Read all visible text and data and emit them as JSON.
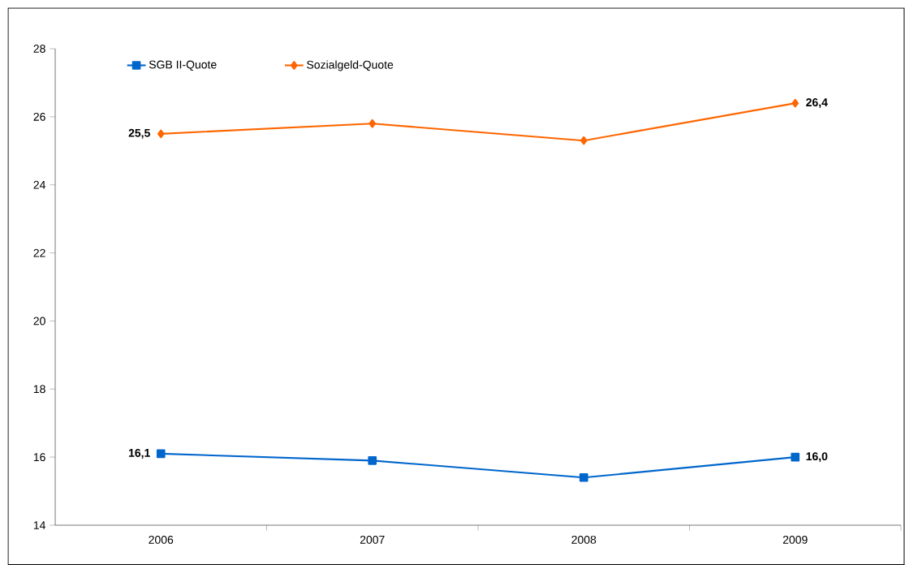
{
  "chart_data": {
    "type": "line",
    "categories": [
      "2006",
      "2007",
      "2008",
      "2009"
    ],
    "series": [
      {
        "name": "SGB II-Quote",
        "color": "#0066cc",
        "marker": "square",
        "values": [
          16.1,
          15.9,
          15.4,
          16.0
        ],
        "value_labels": [
          "16,1",
          null,
          null,
          "16,0"
        ]
      },
      {
        "name": "Sozialgeld-Quote",
        "color": "#ff6600",
        "marker": "diamond",
        "values": [
          25.5,
          25.8,
          25.3,
          26.4
        ],
        "value_labels": [
          "25,5",
          null,
          null,
          "26,4"
        ]
      }
    ],
    "ylim": [
      14,
      28
    ],
    "yticks": [
      14,
      16,
      18,
      20,
      22,
      24,
      26,
      28
    ],
    "legend": "top left",
    "grid": false
  }
}
